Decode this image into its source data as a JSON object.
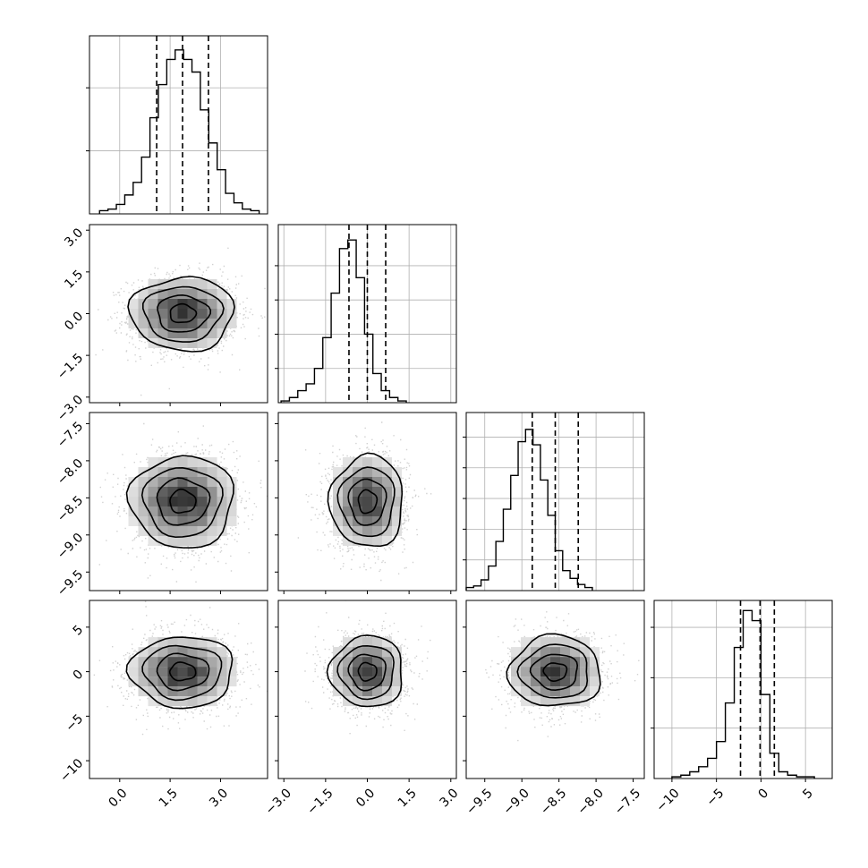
{
  "chart_data": {
    "type": "corner",
    "parameters": [
      {
        "index": 0,
        "mean": 1.87,
        "sd": 0.77,
        "q16": 1.1,
        "q50": 1.87,
        "q84": 2.64,
        "range": [
          -0.9,
          4.4
        ],
        "ticks": [
          "0.0",
          "1.5",
          "3.0"
        ],
        "tick_values": [
          0.0,
          1.5,
          3.0
        ]
      },
      {
        "index": 1,
        "mean": 0.0,
        "sd": 0.66,
        "q16": -0.66,
        "q50": 0.0,
        "q84": 0.66,
        "range": [
          -3.2,
          3.2
        ],
        "ticks": [
          "−3.0",
          "−1.5",
          "0.0",
          "1.5",
          "3.0"
        ],
        "tick_values": [
          -3.0,
          -1.5,
          0.0,
          1.5,
          3.0
        ]
      },
      {
        "index": 2,
        "mean": -8.55,
        "sd": 0.31,
        "q16": -8.86,
        "q50": -8.55,
        "q84": -8.24,
        "range": [
          -9.75,
          -7.35
        ],
        "ticks": [
          "−9.5",
          "−9.0",
          "−8.5",
          "−8.0",
          "−7.5"
        ],
        "tick_values": [
          -9.5,
          -9.0,
          -8.5,
          -8.0,
          -7.5
        ]
      },
      {
        "index": 3,
        "mean": 0.0,
        "sd": 2.0,
        "q16": -2.3,
        "q50": -0.1,
        "q84": 1.5,
        "range": [
          -12.0,
          8.0
        ],
        "ticks": [
          "−10",
          "−5",
          "0",
          "5"
        ],
        "tick_values": [
          -10,
          -5,
          0,
          5
        ]
      }
    ],
    "histograms_1d": [
      {
        "param": 0,
        "bin_start": -0.6,
        "bin_width": 0.25,
        "counts": [
          2,
          3,
          6,
          12,
          20,
          36,
          61,
          82,
          98,
          104,
          98,
          90,
          66,
          45,
          28,
          13,
          7,
          3,
          2
        ],
        "ylim": [
          0,
          113
        ],
        "ygrid": [
          40,
          80
        ]
      },
      {
        "param": 1,
        "bin_start": -3.1,
        "bin_width": 0.3,
        "counts": [
          1,
          3,
          7,
          11,
          20,
          38,
          64,
          90,
          95,
          73,
          40,
          17,
          7,
          3,
          1
        ],
        "ylim": [
          0,
          104
        ],
        "ygrid": [
          20,
          40,
          60,
          80
        ]
      },
      {
        "param": 2,
        "bin_start": -9.75,
        "bin_width": 0.1,
        "counts": [
          2,
          3,
          7,
          16,
          32,
          53,
          75,
          97,
          105,
          95,
          72,
          49,
          26,
          13,
          8,
          4,
          2
        ],
        "ylim": [
          0,
          116
        ],
        "ygrid": [
          20,
          40,
          60,
          80,
          100
        ]
      },
      {
        "param": 3,
        "bin_start": -10,
        "bin_width": 1,
        "counts": [
          1,
          2,
          4,
          7,
          12,
          22,
          45,
          78,
          100,
          94,
          50,
          15,
          4,
          2,
          1,
          1
        ],
        "ylim": [
          0,
          106
        ],
        "ygrid": [
          30,
          60,
          90
        ]
      }
    ],
    "pairs_2d": [
      {
        "x": 0,
        "y": 1,
        "type": "scatter+density+contour"
      },
      {
        "x": 0,
        "y": 2,
        "type": "scatter+density+contour"
      },
      {
        "x": 1,
        "y": 2,
        "type": "scatter+density+contour"
      },
      {
        "x": 0,
        "y": 3,
        "type": "scatter+density+contour"
      },
      {
        "x": 1,
        "y": 3,
        "type": "scatter+density+contour"
      },
      {
        "x": 2,
        "y": 3,
        "type": "scatter+density+contour"
      }
    ],
    "contour_levels_sigma": [
      0.5,
      1.0,
      1.5,
      2.0
    ],
    "quantiles": [
      0.16,
      0.5,
      0.84
    ],
    "grid": true,
    "colors": {
      "line": "#000000",
      "grid": "#b0b0b0",
      "points": "#9a9a9a"
    }
  }
}
